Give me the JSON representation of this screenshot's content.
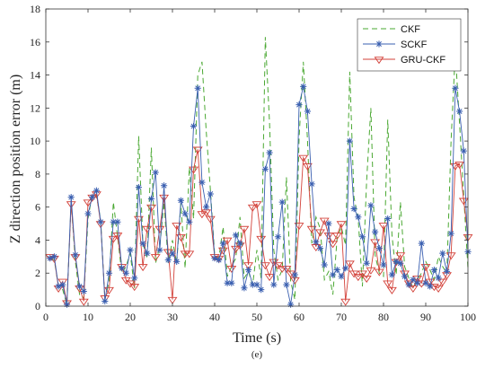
{
  "chart_data": {
    "type": "line",
    "title": "",
    "xlabel": "Time (s)",
    "ylabel": "Z direction position error (m)",
    "caption": "(e)",
    "xlim": [
      0,
      100
    ],
    "ylim": [
      0,
      18
    ],
    "x_ticks": [
      "0",
      "10",
      "20",
      "30",
      "40",
      "50",
      "60",
      "70",
      "80",
      "90",
      "100"
    ],
    "y_ticks": [
      "0",
      "2",
      "4",
      "6",
      "8",
      "10",
      "12",
      "14",
      "16",
      "18"
    ],
    "grid": false,
    "legend_position": "top-right",
    "x": [
      1,
      2,
      3,
      4,
      5,
      6,
      7,
      8,
      9,
      10,
      11,
      12,
      13,
      14,
      15,
      16,
      17,
      18,
      19,
      20,
      21,
      22,
      23,
      24,
      25,
      26,
      27,
      28,
      29,
      30,
      31,
      32,
      33,
      34,
      35,
      36,
      37,
      38,
      39,
      40,
      41,
      42,
      43,
      44,
      45,
      46,
      47,
      48,
      49,
      50,
      51,
      52,
      53,
      54,
      55,
      56,
      57,
      58,
      59,
      60,
      61,
      62,
      63,
      64,
      65,
      66,
      67,
      68,
      69,
      70,
      71,
      72,
      73,
      74,
      75,
      76,
      77,
      78,
      79,
      80,
      81,
      82,
      83,
      84,
      85,
      86,
      87,
      88,
      89,
      90,
      91,
      92,
      93,
      94,
      95,
      96,
      97,
      98,
      99,
      100
    ],
    "series": [
      {
        "name": "CKF",
        "style": "dashed",
        "color": "#4aa832",
        "marker": "none",
        "values": [
          2.9,
          2.8,
          1.2,
          1.0,
          0.1,
          6.3,
          2.7,
          0.7,
          0.5,
          5.3,
          6.8,
          6.7,
          5.2,
          0.4,
          1.5,
          6.3,
          4.2,
          2.0,
          2.4,
          3.2,
          1.1,
          10.3,
          3.8,
          2.9,
          9.6,
          2.6,
          3.6,
          6.3,
          2.6,
          4.0,
          2.6,
          6.2,
          2.3,
          8.4,
          5.3,
          14.0,
          14.8,
          10.6,
          7.0,
          3.1,
          2.9,
          4.8,
          1.8,
          2.4,
          2.9,
          5.4,
          1.7,
          2.1,
          1.3,
          3.4,
          1.7,
          16.3,
          11.1,
          3.4,
          1.6,
          2.2,
          7.8,
          1.5,
          0.4,
          10.2,
          14.8,
          10.0,
          3.8,
          5.4,
          4.7,
          1.6,
          2.1,
          0.7,
          4.1,
          4.8,
          3.7,
          14.2,
          6.6,
          5.3,
          1.2,
          7.6,
          12.0,
          3.1,
          2.0,
          1.8,
          11.3,
          4.3,
          1.9,
          6.3,
          2.4,
          1.7,
          1.1,
          1.6,
          2.0,
          2.7,
          2.2,
          1.6,
          3.0,
          2.4,
          2.0,
          10.0,
          15.4,
          11.1,
          6.7,
          2.3
        ]
      },
      {
        "name": "SCKF",
        "style": "solid",
        "color": "#3a5fb0",
        "marker": "asterisk",
        "values": [
          2.9,
          3.0,
          1.2,
          1.3,
          0.1,
          6.6,
          3.1,
          1.2,
          0.9,
          5.6,
          6.6,
          7.0,
          5.1,
          0.3,
          2.0,
          5.1,
          5.1,
          2.3,
          2.0,
          3.4,
          1.7,
          7.2,
          3.8,
          3.2,
          6.5,
          8.1,
          3.4,
          7.3,
          2.8,
          3.2,
          2.7,
          6.4,
          5.6,
          5.1,
          10.9,
          13.2,
          7.5,
          6.0,
          6.8,
          2.9,
          2.8,
          3.8,
          1.4,
          1.4,
          4.3,
          3.8,
          1.1,
          2.2,
          1.3,
          1.3,
          1.0,
          8.3,
          9.3,
          1.3,
          4.2,
          6.3,
          1.3,
          0.1,
          1.9,
          12.2,
          13.3,
          11.8,
          7.4,
          3.9,
          3.5,
          2.5,
          5.0,
          1.9,
          2.2,
          1.8,
          2.3,
          10.0,
          5.9,
          5.4,
          4.2,
          2.6,
          6.1,
          4.5,
          3.5,
          2.5,
          5.3,
          1.9,
          2.7,
          2.6,
          1.8,
          1.3,
          1.6,
          1.4,
          3.8,
          1.4,
          1.2,
          2.2,
          1.7,
          3.2,
          2.1,
          4.4,
          13.2,
          11.8,
          9.4,
          3.3
        ]
      },
      {
        "name": "GRU-CKF",
        "style": "solid",
        "color": "#d3423a",
        "marker": "triangle-down",
        "values": [
          3.0,
          2.9,
          1.1,
          1.5,
          0.2,
          6.2,
          3.0,
          1.1,
          0.3,
          6.3,
          6.6,
          6.8,
          5.0,
          0.5,
          1.0,
          4.1,
          4.3,
          2.4,
          1.6,
          1.4,
          1.2,
          5.3,
          2.4,
          4.7,
          6.0,
          3.0,
          4.7,
          6.6,
          3.3,
          0.4,
          4.9,
          4.2,
          3.2,
          3.2,
          8.3,
          9.5,
          5.6,
          5.7,
          5.3,
          3.0,
          2.9,
          3.4,
          4.0,
          2.3,
          3.5,
          3.7,
          4.7,
          2.5,
          6.0,
          6.2,
          4.1,
          2.5,
          1.8,
          2.7,
          2.5,
          2.3,
          2.3,
          2.0,
          1.6,
          4.9,
          9.0,
          8.5,
          4.7,
          3.6,
          4.5,
          5.2,
          4.3,
          3.8,
          4.3,
          5.0,
          0.3,
          2.6,
          2.0,
          1.8,
          2.0,
          1.7,
          2.2,
          3.9,
          2.1,
          4.9,
          1.4,
          1.0,
          2.7,
          3.1,
          2.0,
          1.4,
          1.1,
          1.7,
          1.4,
          2.4,
          1.5,
          1.2,
          1.1,
          1.5,
          1.9,
          3.1,
          8.5,
          8.6,
          6.4,
          4.2
        ]
      }
    ]
  }
}
